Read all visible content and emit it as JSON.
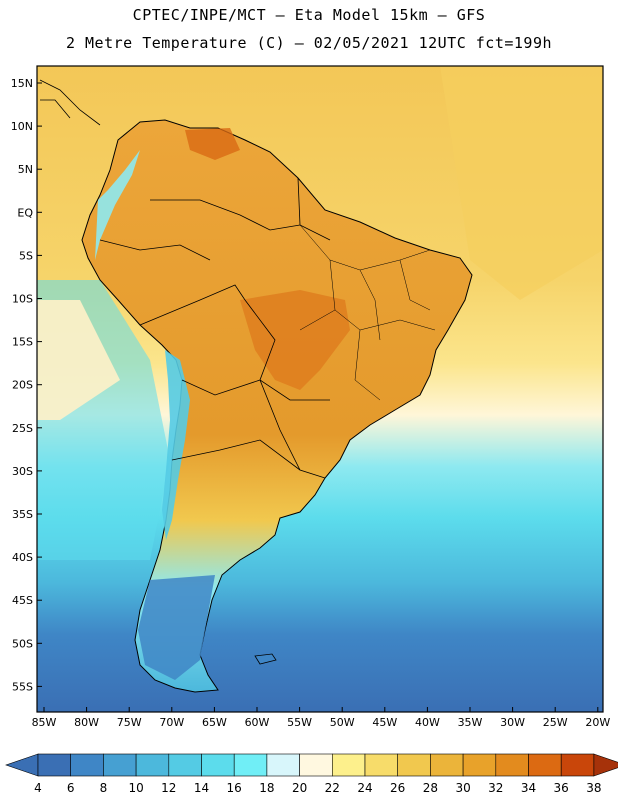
{
  "header": {
    "line1": "CPTEC/INPE/MCT –  Eta Model 15km – GFS",
    "line2": "2 Metre Temperature (C) – 02/05/2021 12UTC fct=199h"
  },
  "axes": {
    "lat_labels": [
      "15N",
      "10N",
      "5N",
      "EQ",
      "5S",
      "10S",
      "15S",
      "20S",
      "25S",
      "30S",
      "35S",
      "40S",
      "45S",
      "50S",
      "55S"
    ],
    "lon_labels": [
      "85W",
      "80W",
      "75W",
      "70W",
      "65W",
      "60W",
      "55W",
      "50W",
      "45W",
      "40W",
      "35W",
      "30W",
      "25W",
      "20W"
    ]
  },
  "colorbar": {
    "unit": "C",
    "levels": [
      "4",
      "6",
      "8",
      "10",
      "12",
      "14",
      "16",
      "18",
      "20",
      "22",
      "24",
      "26",
      "28",
      "30",
      "32",
      "34",
      "36",
      "38"
    ],
    "colors": [
      "#3a6fb4",
      "#3f86c6",
      "#46a0d2",
      "#4cb8dc",
      "#54cbe4",
      "#5cdcec",
      "#70eef6",
      "#d8f6fb",
      "#fff8e0",
      "#fdf08c",
      "#f7dc6a",
      "#f1c84e",
      "#ebb43a",
      "#e8a22a",
      "#e38b1e",
      "#dc6a12",
      "#c9460a",
      "#a6320a"
    ]
  },
  "map_layers": {
    "background": "ocean-temperature-field",
    "features": [
      "continent-outline",
      "country-borders",
      "state-borders"
    ]
  }
}
